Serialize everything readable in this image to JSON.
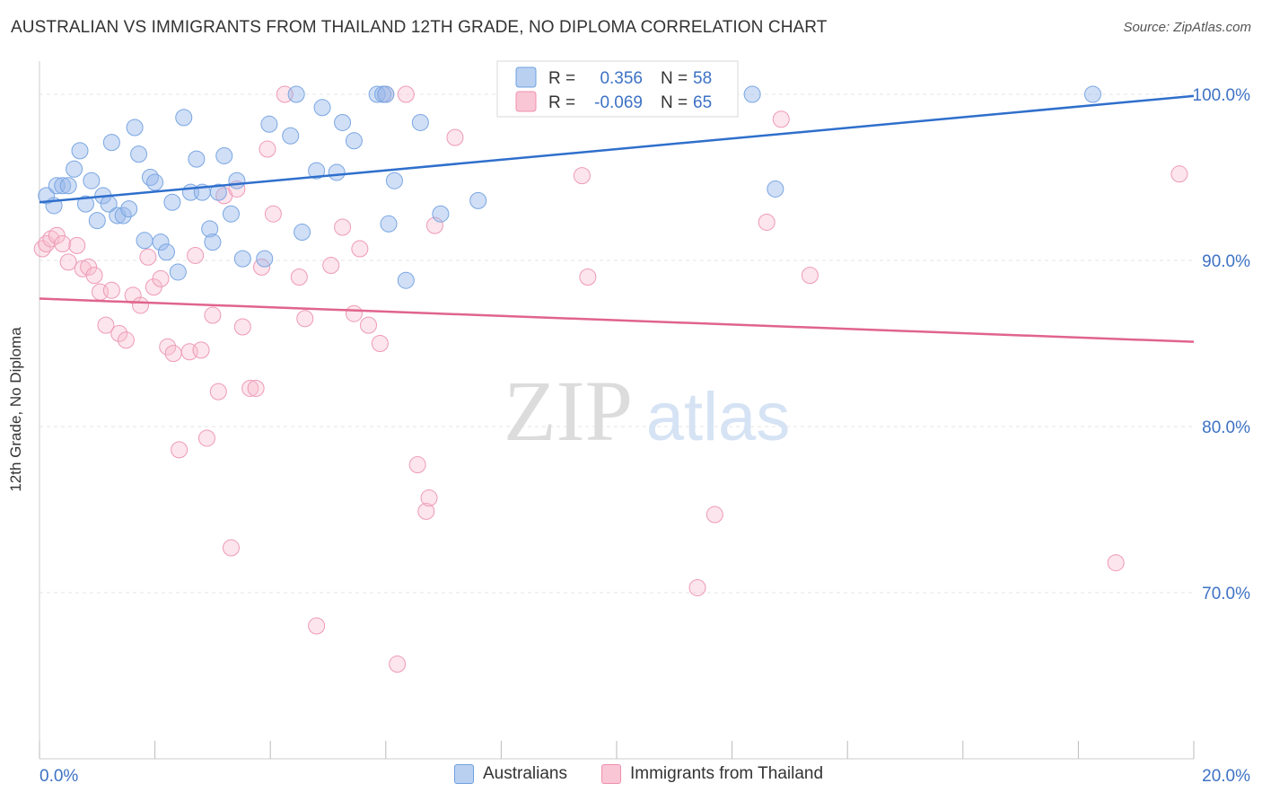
{
  "title": "AUSTRALIAN VS IMMIGRANTS FROM THAILAND 12TH GRADE, NO DIPLOMA CORRELATION CHART",
  "source": "Source: ZipAtlas.com",
  "watermark": {
    "zip": "ZIP",
    "atlas": "atlas"
  },
  "colors": {
    "blue": "#6fa0e0",
    "blue_line": "#2f6fcc",
    "pink": "#f08fae",
    "pink_line": "#e0648c",
    "axis_text": "#3d72c4"
  },
  "legend": {
    "rows": [
      {
        "r_label": "R =",
        "r_value": "0.356",
        "n_label": "N =",
        "n_value": "58"
      },
      {
        "r_label": "R =",
        "r_value": "-0.069",
        "n_label": "N =",
        "n_value": "65"
      }
    ]
  },
  "bottom_legend": [
    "Australians",
    "Immigrants from Thailand"
  ],
  "chart_data": {
    "type": "scatter",
    "title": "AUSTRALIAN VS IMMIGRANTS FROM THAILAND 12TH GRADE, NO DIPLOMA CORRELATION CHART",
    "xlabel": "",
    "ylabel": "12th Grade, No Diploma",
    "xlim": [
      0,
      20
    ],
    "ylim": [
      60,
      102
    ],
    "x_tick_labels": [
      "0.0%",
      "20.0%"
    ],
    "y_ticks": [
      70,
      80,
      90,
      100
    ],
    "y_tick_labels": [
      "70.0%",
      "80.0%",
      "90.0%",
      "100.0%"
    ],
    "grid": true,
    "legend_position": "top-center",
    "series": [
      {
        "name": "Australians",
        "trend": [
          [
            0,
            93.5
          ],
          [
            20,
            99.9
          ]
        ],
        "points": [
          [
            0.12,
            93.9
          ],
          [
            0.25,
            93.3
          ],
          [
            0.3,
            94.5
          ],
          [
            0.4,
            94.5
          ],
          [
            0.5,
            94.5
          ],
          [
            0.6,
            95.5
          ],
          [
            0.7,
            96.6
          ],
          [
            0.8,
            93.4
          ],
          [
            0.9,
            94.8
          ],
          [
            1.0,
            92.4
          ],
          [
            1.1,
            93.9
          ],
          [
            1.2,
            93.4
          ],
          [
            1.25,
            97.1
          ],
          [
            1.35,
            92.7
          ],
          [
            1.45,
            92.7
          ],
          [
            1.55,
            93.1
          ],
          [
            1.65,
            98.0
          ],
          [
            1.72,
            96.4
          ],
          [
            1.82,
            91.2
          ],
          [
            1.92,
            95.0
          ],
          [
            2.0,
            94.7
          ],
          [
            2.1,
            91.1
          ],
          [
            2.2,
            90.5
          ],
          [
            2.3,
            93.5
          ],
          [
            2.4,
            89.3
          ],
          [
            2.5,
            98.6
          ],
          [
            2.62,
            94.1
          ],
          [
            2.72,
            96.1
          ],
          [
            2.82,
            94.1
          ],
          [
            2.95,
            91.9
          ],
          [
            3.0,
            91.1
          ],
          [
            3.1,
            94.1
          ],
          [
            3.2,
            96.3
          ],
          [
            3.32,
            92.8
          ],
          [
            3.42,
            94.8
          ],
          [
            3.52,
            90.1
          ],
          [
            3.9,
            90.1
          ],
          [
            3.98,
            98.2
          ],
          [
            4.35,
            97.5
          ],
          [
            4.45,
            100.0
          ],
          [
            4.55,
            91.7
          ],
          [
            4.8,
            95.4
          ],
          [
            4.9,
            99.2
          ],
          [
            5.15,
            95.3
          ],
          [
            5.25,
            98.3
          ],
          [
            5.45,
            97.2
          ],
          [
            5.85,
            100.0
          ],
          [
            5.95,
            100.0
          ],
          [
            6.0,
            100.0
          ],
          [
            6.05,
            92.2
          ],
          [
            6.15,
            94.8
          ],
          [
            6.35,
            88.8
          ],
          [
            6.6,
            98.3
          ],
          [
            6.95,
            92.8
          ],
          [
            7.6,
            93.6
          ],
          [
            12.35,
            100.0
          ],
          [
            12.75,
            94.3
          ],
          [
            18.25,
            100.0
          ]
        ]
      },
      {
        "name": "Immigrants from Thailand",
        "trend": [
          [
            0,
            87.7
          ],
          [
            20,
            85.1
          ]
        ],
        "points": [
          [
            0.05,
            90.7
          ],
          [
            0.12,
            91.0
          ],
          [
            0.2,
            91.3
          ],
          [
            0.3,
            91.5
          ],
          [
            0.4,
            91.0
          ],
          [
            0.5,
            89.9
          ],
          [
            0.65,
            90.9
          ],
          [
            0.75,
            89.5
          ],
          [
            0.85,
            89.6
          ],
          [
            0.95,
            89.1
          ],
          [
            1.05,
            88.1
          ],
          [
            1.15,
            86.1
          ],
          [
            1.25,
            88.2
          ],
          [
            1.38,
            85.6
          ],
          [
            1.5,
            85.2
          ],
          [
            1.62,
            87.9
          ],
          [
            1.75,
            87.3
          ],
          [
            1.88,
            90.2
          ],
          [
            1.98,
            88.4
          ],
          [
            2.1,
            88.9
          ],
          [
            2.22,
            84.8
          ],
          [
            2.32,
            84.4
          ],
          [
            2.42,
            78.6
          ],
          [
            2.6,
            84.5
          ],
          [
            2.7,
            90.3
          ],
          [
            2.8,
            84.6
          ],
          [
            2.9,
            79.3
          ],
          [
            3.0,
            86.7
          ],
          [
            3.1,
            82.1
          ],
          [
            3.2,
            93.9
          ],
          [
            3.32,
            72.7
          ],
          [
            3.42,
            94.3
          ],
          [
            3.52,
            86.0
          ],
          [
            3.65,
            82.3
          ],
          [
            3.75,
            82.3
          ],
          [
            3.85,
            89.6
          ],
          [
            3.95,
            96.7
          ],
          [
            4.05,
            92.8
          ],
          [
            4.25,
            100.0
          ],
          [
            4.5,
            89.0
          ],
          [
            4.6,
            86.5
          ],
          [
            4.8,
            68.0
          ],
          [
            5.05,
            89.7
          ],
          [
            5.25,
            92.0
          ],
          [
            5.45,
            86.8
          ],
          [
            5.55,
            90.7
          ],
          [
            5.7,
            86.1
          ],
          [
            5.9,
            85.0
          ],
          [
            6.0,
            100.0
          ],
          [
            6.2,
            65.7
          ],
          [
            6.35,
            100.0
          ],
          [
            6.55,
            77.7
          ],
          [
            6.7,
            74.9
          ],
          [
            6.75,
            75.7
          ],
          [
            6.85,
            92.1
          ],
          [
            7.2,
            97.4
          ],
          [
            9.4,
            95.1
          ],
          [
            9.5,
            89.0
          ],
          [
            11.4,
            70.3
          ],
          [
            11.7,
            74.7
          ],
          [
            12.6,
            92.3
          ],
          [
            12.85,
            98.5
          ],
          [
            13.35,
            89.1
          ],
          [
            18.65,
            71.8
          ],
          [
            19.75,
            95.2
          ]
        ]
      }
    ]
  }
}
